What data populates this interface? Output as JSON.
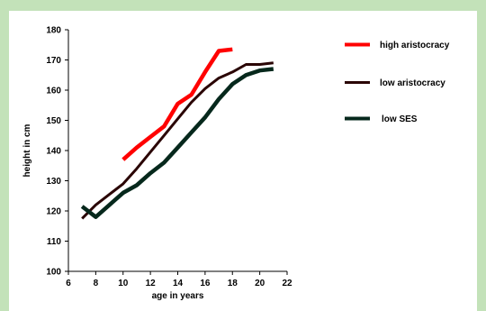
{
  "chart_data": {
    "type": "line",
    "xlabel": "age in years",
    "ylabel": "height in cm",
    "xlim": [
      6,
      22
    ],
    "ylim": [
      100,
      180
    ],
    "xticks": [
      6,
      8,
      10,
      12,
      14,
      16,
      18,
      20,
      22
    ],
    "yticks": [
      100,
      110,
      120,
      130,
      140,
      150,
      160,
      170,
      180
    ],
    "grid": false,
    "legend_position": "top-right",
    "series": [
      {
        "name": "high aristocracy",
        "color": "#ff0000",
        "x": [
          10,
          11,
          12,
          13,
          14,
          15,
          16,
          17,
          18
        ],
        "y": [
          137,
          141,
          144.5,
          148,
          155.5,
          158.5,
          166,
          173,
          173.5
        ]
      },
      {
        "name": "low aristocracy",
        "color": "#2a0505",
        "x": [
          7,
          8,
          9,
          10,
          11,
          12,
          13,
          14,
          15,
          16,
          17,
          18,
          19,
          20,
          21
        ],
        "y": [
          117.5,
          122,
          125.5,
          129,
          134,
          139.5,
          145,
          150.5,
          156,
          160.5,
          164,
          166,
          168.5,
          168.5,
          169
        ]
      },
      {
        "name": "low SES",
        "color": "#06281c",
        "x": [
          7,
          8,
          9,
          10,
          11,
          12,
          13,
          14,
          15,
          16,
          17,
          18,
          19,
          20,
          21
        ],
        "y": [
          121.5,
          118,
          122,
          126,
          128.5,
          132.5,
          136,
          141,
          146,
          151,
          157,
          162,
          165,
          166.5,
          167
        ]
      }
    ]
  }
}
